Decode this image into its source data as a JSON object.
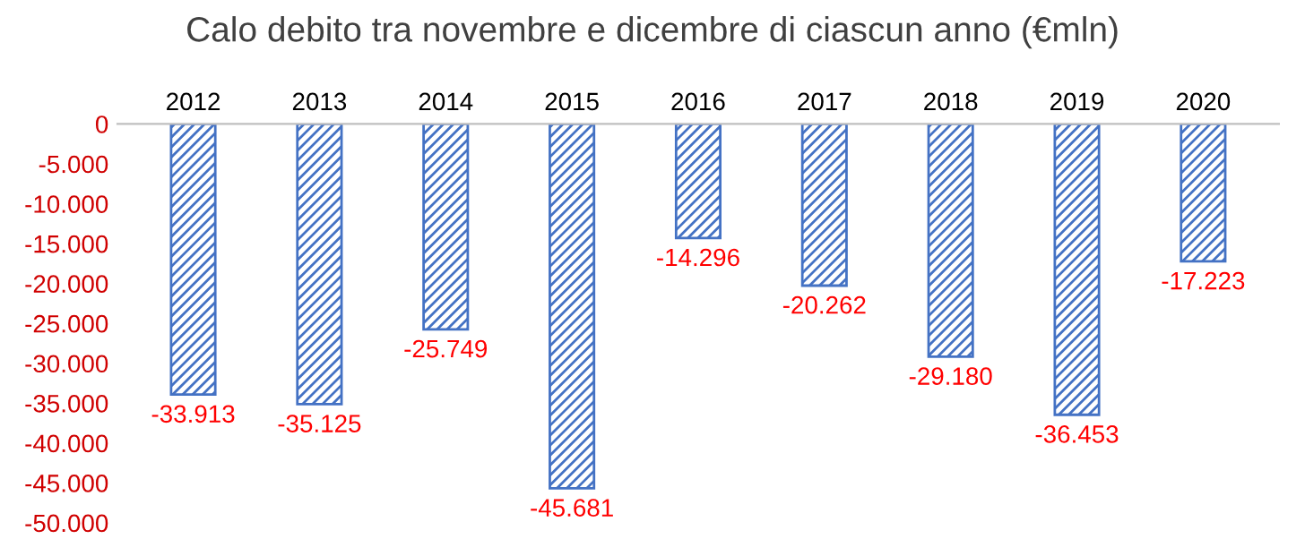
{
  "chart_data": {
    "type": "bar",
    "title": "Calo debito tra novembre e dicembre di ciascun anno (€mln)",
    "categories": [
      "2012",
      "2013",
      "2014",
      "2015",
      "2016",
      "2017",
      "2018",
      "2019",
      "2020"
    ],
    "series": [
      {
        "color": "#4472c4",
        "values": [
          -33913,
          -35125,
          -25749,
          -45681,
          -14296,
          -20262,
          -29180,
          -36453,
          -17223
        ],
        "value_labels": [
          "-33.913",
          "-35.125",
          "-25.749",
          "-45.681",
          "-14.296",
          "-20.262",
          "-29.180",
          "-36.453",
          "-17.223"
        ]
      }
    ],
    "ylim": [
      -50000,
      0
    ],
    "yticks": [
      {
        "value": 0,
        "label": "0"
      },
      {
        "value": -5000,
        "label": "-5.000"
      },
      {
        "value": -10000,
        "label": "-10.000"
      },
      {
        "value": -15000,
        "label": "-15.000"
      },
      {
        "value": -20000,
        "label": "-20.000"
      },
      {
        "value": -25000,
        "label": "-25.000"
      },
      {
        "value": -30000,
        "label": "-30.000"
      },
      {
        "value": -35000,
        "label": "-35.000"
      },
      {
        "value": -40000,
        "label": "-40.000"
      },
      {
        "value": -45000,
        "label": "-45.000"
      },
      {
        "value": -50000,
        "label": "-50.000"
      }
    ],
    "grid": false,
    "legend": false
  }
}
